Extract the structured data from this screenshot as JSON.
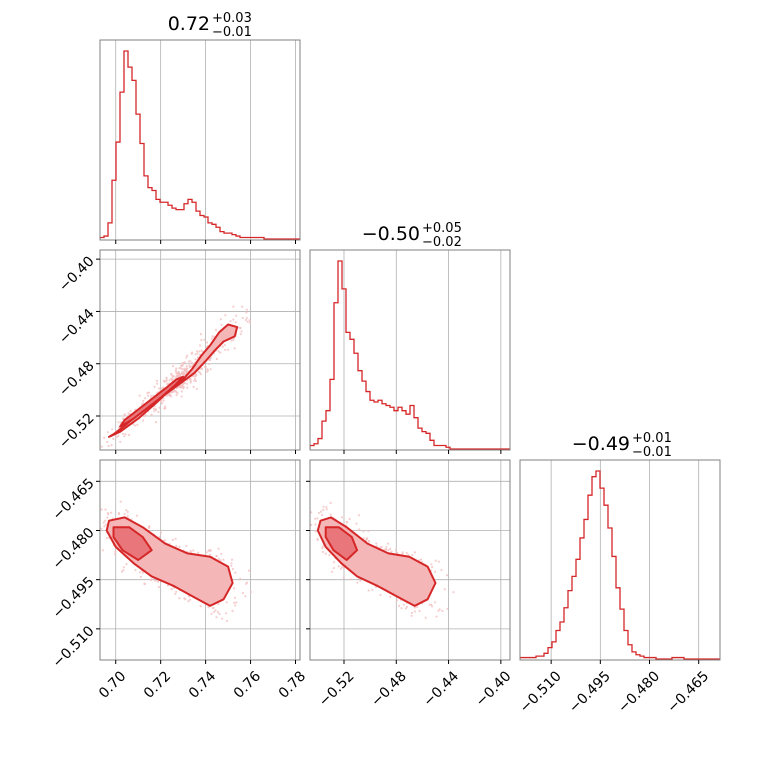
{
  "chart_data": [
    {
      "type": "histogram",
      "id": "hist-p1",
      "title": {
        "value": "0.72",
        "upper": "+0.03",
        "lower": "−0.01"
      },
      "xlim": [
        0.693,
        0.782
      ],
      "ticks": [
        {
          "v": 0.7,
          "label": "0.70"
        },
        {
          "v": 0.72,
          "label": "0.72"
        },
        {
          "v": 0.74,
          "label": "0.74"
        },
        {
          "v": 0.76,
          "label": "0.76"
        },
        {
          "v": 0.78,
          "label": "0.78"
        }
      ],
      "bin_start": 0.693,
      "bin_width": 0.00178,
      "counts": [
        1,
        2,
        11,
        40,
        66,
        100,
        128,
        117,
        108,
        85,
        65,
        43,
        35,
        33,
        27,
        25,
        25,
        23,
        21,
        20,
        20,
        24,
        27,
        25,
        19,
        16,
        15,
        11,
        10,
        8,
        5,
        4,
        4,
        3,
        2,
        1,
        1,
        1,
        1,
        1,
        1,
        0,
        0,
        0,
        0,
        0,
        0,
        0,
        0,
        0
      ]
    },
    {
      "type": "histogram",
      "id": "hist-p2",
      "title": {
        "value": "−0.50",
        "upper": "+0.05",
        "lower": "−0.02"
      },
      "xlim": [
        -0.546,
        -0.393
      ],
      "ticks": [
        {
          "v": -0.52,
          "label": "−0.52"
        },
        {
          "v": -0.48,
          "label": "−0.48"
        },
        {
          "v": -0.44,
          "label": "−0.44"
        },
        {
          "v": -0.4,
          "label": "−0.40"
        }
      ],
      "bin_start": -0.546,
      "bin_width": 0.00306,
      "counts": [
        2,
        3,
        6,
        16,
        22,
        40,
        84,
        108,
        92,
        67,
        63,
        55,
        45,
        39,
        33,
        28,
        27,
        28,
        26,
        25,
        24,
        22,
        24,
        22,
        20,
        25,
        18,
        12,
        10,
        9,
        5,
        2,
        2,
        2,
        1,
        0,
        0,
        0,
        0,
        0,
        0,
        0,
        0,
        0,
        0,
        0,
        0,
        0,
        0,
        0
      ]
    },
    {
      "type": "histogram",
      "id": "hist-p3",
      "title": {
        "value": "−0.49",
        "upper": "+0.01",
        "lower": "−0.01"
      },
      "xlim": [
        -0.5195,
        -0.4585
      ],
      "ticks": [
        {
          "v": -0.51,
          "label": "−0.510"
        },
        {
          "v": -0.495,
          "label": "−0.495"
        },
        {
          "v": -0.48,
          "label": "−0.480"
        },
        {
          "v": -0.465,
          "label": "−0.465"
        }
      ],
      "bin_start": -0.5195,
      "bin_width": 0.00122,
      "counts": [
        1,
        1,
        1,
        1,
        2,
        2,
        4,
        8,
        12,
        20,
        26,
        36,
        48,
        58,
        70,
        85,
        98,
        115,
        128,
        132,
        120,
        108,
        92,
        72,
        50,
        35,
        20,
        10,
        5,
        3,
        2,
        1,
        1,
        1,
        0,
        0,
        0,
        0,
        1,
        1,
        1,
        0,
        0,
        0,
        0,
        0,
        0,
        0,
        0,
        0
      ]
    },
    {
      "type": "scatter",
      "id": "scatter-p1-p2",
      "xlim": [
        0.693,
        0.782
      ],
      "ylim": [
        -0.546,
        -0.393
      ],
      "xticks": [
        0.7,
        0.72,
        0.74,
        0.76,
        0.78
      ],
      "yticks": [
        {
          "v": -0.4,
          "label": "−0.40"
        },
        {
          "v": -0.44,
          "label": "−0.44"
        },
        {
          "v": -0.48,
          "label": "−0.48"
        },
        {
          "v": -0.52,
          "label": "−0.52"
        }
      ],
      "outer_contour": [
        [
          0.697,
          -0.536
        ],
        [
          0.702,
          -0.532
        ],
        [
          0.71,
          -0.522
        ],
        [
          0.718,
          -0.51
        ],
        [
          0.724,
          -0.5
        ],
        [
          0.73,
          -0.492
        ],
        [
          0.734,
          -0.484
        ],
        [
          0.738,
          -0.474
        ],
        [
          0.742,
          -0.466
        ],
        [
          0.746,
          -0.456
        ],
        [
          0.75,
          -0.45
        ],
        [
          0.754,
          -0.452
        ],
        [
          0.753,
          -0.459
        ],
        [
          0.748,
          -0.463
        ],
        [
          0.744,
          -0.47
        ],
        [
          0.74,
          -0.478
        ],
        [
          0.735,
          -0.487
        ],
        [
          0.728,
          -0.496
        ],
        [
          0.72,
          -0.506
        ],
        [
          0.712,
          -0.516
        ],
        [
          0.705,
          -0.526
        ],
        [
          0.699,
          -0.534
        ]
      ],
      "inner_contour": [
        [
          0.702,
          -0.528
        ],
        [
          0.708,
          -0.522
        ],
        [
          0.714,
          -0.514
        ],
        [
          0.72,
          -0.506
        ],
        [
          0.726,
          -0.497
        ],
        [
          0.73,
          -0.49
        ],
        [
          0.727,
          -0.492
        ],
        [
          0.722,
          -0.499
        ],
        [
          0.716,
          -0.507
        ],
        [
          0.71,
          -0.515
        ],
        [
          0.704,
          -0.523
        ]
      ]
    },
    {
      "type": "scatter",
      "id": "scatter-p1-p3",
      "xlim": [
        0.693,
        0.782
      ],
      "ylim": [
        -0.5195,
        -0.4585
      ],
      "xticks": [
        0.7,
        0.72,
        0.74,
        0.76,
        0.78
      ],
      "yticks": [
        {
          "v": -0.465,
          "label": "−0.465"
        },
        {
          "v": -0.48,
          "label": "−0.480"
        },
        {
          "v": -0.495,
          "label": "−0.495"
        },
        {
          "v": -0.51,
          "label": "−0.510"
        }
      ],
      "outer_contour": [
        [
          0.697,
          -0.477
        ],
        [
          0.704,
          -0.476
        ],
        [
          0.712,
          -0.479
        ],
        [
          0.722,
          -0.484
        ],
        [
          0.732,
          -0.487
        ],
        [
          0.742,
          -0.488
        ],
        [
          0.75,
          -0.491
        ],
        [
          0.752,
          -0.496
        ],
        [
          0.748,
          -0.501
        ],
        [
          0.742,
          -0.503
        ],
        [
          0.734,
          -0.5
        ],
        [
          0.726,
          -0.497
        ],
        [
          0.716,
          -0.494
        ],
        [
          0.708,
          -0.49
        ],
        [
          0.7,
          -0.485
        ],
        [
          0.696,
          -0.48
        ]
      ],
      "inner_contour": [
        [
          0.699,
          -0.479
        ],
        [
          0.706,
          -0.479
        ],
        [
          0.712,
          -0.482
        ],
        [
          0.716,
          -0.486
        ],
        [
          0.71,
          -0.489
        ],
        [
          0.703,
          -0.486
        ],
        [
          0.699,
          -0.482
        ]
      ]
    },
    {
      "type": "scatter",
      "id": "scatter-p2-p3",
      "xlim": [
        -0.546,
        -0.393
      ],
      "ylim": [
        -0.5195,
        -0.4585
      ],
      "xticks": [
        -0.52,
        -0.48,
        -0.44,
        -0.4
      ],
      "outer_contour": [
        [
          -0.538,
          -0.477
        ],
        [
          -0.53,
          -0.476
        ],
        [
          -0.518,
          -0.479
        ],
        [
          -0.502,
          -0.484
        ],
        [
          -0.486,
          -0.487
        ],
        [
          -0.47,
          -0.488
        ],
        [
          -0.456,
          -0.491
        ],
        [
          -0.45,
          -0.496
        ],
        [
          -0.456,
          -0.501
        ],
        [
          -0.466,
          -0.503
        ],
        [
          -0.48,
          -0.5
        ],
        [
          -0.494,
          -0.497
        ],
        [
          -0.51,
          -0.494
        ],
        [
          -0.522,
          -0.49
        ],
        [
          -0.534,
          -0.485
        ],
        [
          -0.54,
          -0.48
        ]
      ],
      "inner_contour": [
        [
          -0.534,
          -0.479
        ],
        [
          -0.524,
          -0.479
        ],
        [
          -0.514,
          -0.482
        ],
        [
          -0.51,
          -0.486
        ],
        [
          -0.518,
          -0.489
        ],
        [
          -0.528,
          -0.486
        ],
        [
          -0.534,
          -0.482
        ]
      ]
    }
  ],
  "colors": {
    "series": "#d62728",
    "fill_outer": "#f4b6b7",
    "fill_inner": "#e8767a",
    "points": "#f3c2c3"
  }
}
